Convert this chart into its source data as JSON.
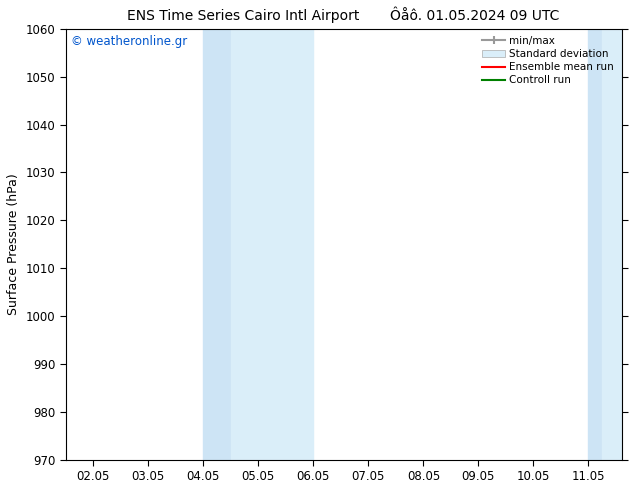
{
  "title_left": "ENS Time Series Cairo Intl Airport",
  "title_right": "Ôåô. 01.05.2024 09 UTC",
  "ylabel": "Surface Pressure (hPa)",
  "xlim_min": 1.5,
  "xlim_max": 11.6,
  "ylim_min": 970,
  "ylim_max": 1060,
  "yticks": [
    970,
    980,
    990,
    1000,
    1010,
    1020,
    1030,
    1040,
    1050,
    1060
  ],
  "xtick_labels": [
    "02.05",
    "03.05",
    "04.05",
    "05.05",
    "06.05",
    "07.05",
    "08.05",
    "09.05",
    "10.05",
    "11.05"
  ],
  "xtick_positions": [
    2,
    3,
    4,
    5,
    6,
    7,
    8,
    9,
    10,
    11
  ],
  "shaded_bands": [
    {
      "x_start": 4.0,
      "x_end": 4.5,
      "color": "#cde4f5"
    },
    {
      "x_start": 4.5,
      "x_end": 6.0,
      "color": "#daeef9"
    },
    {
      "x_start": 11.0,
      "x_end": 11.25,
      "color": "#cde4f5"
    },
    {
      "x_start": 11.25,
      "x_end": 11.6,
      "color": "#daeef9"
    }
  ],
  "shade_color": "#daeaf8",
  "background_color": "#ffffff",
  "watermark_text": "© weatheronline.gr",
  "watermark_color": "#0055cc",
  "legend_labels": [
    "min/max",
    "Standard deviation",
    "Ensemble mean run",
    "Controll run"
  ],
  "title_fontsize": 10,
  "axis_label_fontsize": 9,
  "tick_fontsize": 8.5
}
